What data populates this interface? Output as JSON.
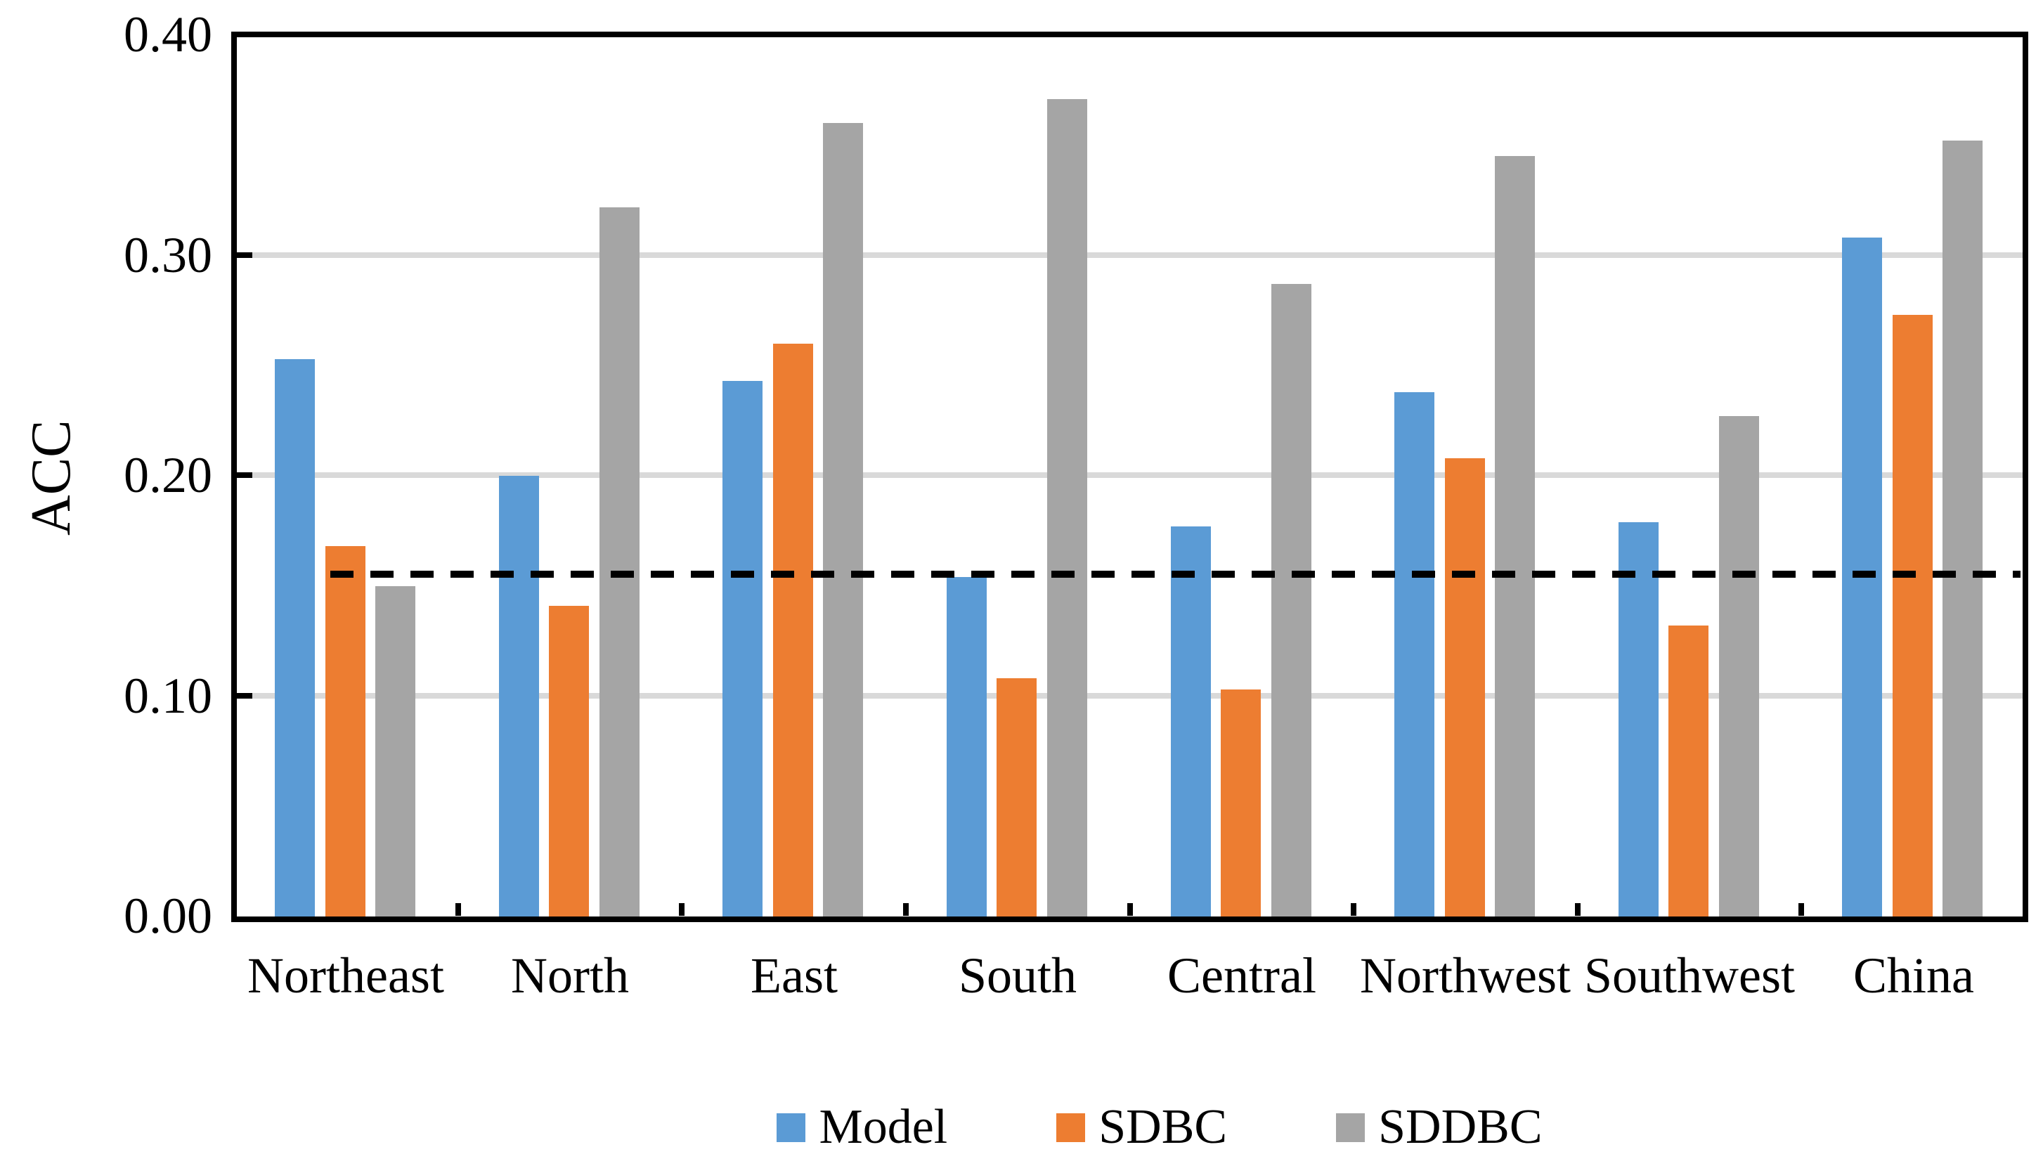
{
  "figure": {
    "background": "#ffffff"
  },
  "chart_data": {
    "type": "bar",
    "title": "",
    "ylabel": "ACC",
    "xlabel": "",
    "categories": [
      "Northeast",
      "North",
      "East",
      "South",
      "Central",
      "Northwest",
      "Southwest",
      "China"
    ],
    "series": [
      {
        "name": "Model",
        "color": "#5B9BD5",
        "values": [
          0.253,
          0.2,
          0.243,
          0.154,
          0.177,
          0.238,
          0.179,
          0.308
        ]
      },
      {
        "name": "SDBC",
        "color": "#ED7D31",
        "values": [
          0.168,
          0.141,
          0.26,
          0.108,
          0.103,
          0.208,
          0.132,
          0.273
        ]
      },
      {
        "name": "SDDBC",
        "color": "#A5A5A5",
        "values": [
          0.15,
          0.322,
          0.36,
          0.371,
          0.287,
          0.345,
          0.227,
          0.352
        ]
      }
    ],
    "ylim": [
      0,
      0.4
    ],
    "ytick_step": 0.1,
    "ytick_labels": [
      "0.00",
      "0.10",
      "0.20",
      "0.30",
      "0.40"
    ],
    "grid": "horizontal",
    "gridline_color": "#D9D9D9",
    "axis_color": "#000000",
    "reference_line": {
      "value": 0.155,
      "style": "dashed",
      "color": "#000000"
    },
    "legend_position": "bottom",
    "legend_entries": [
      "Model",
      "SDBC",
      "SDDBC"
    ]
  }
}
